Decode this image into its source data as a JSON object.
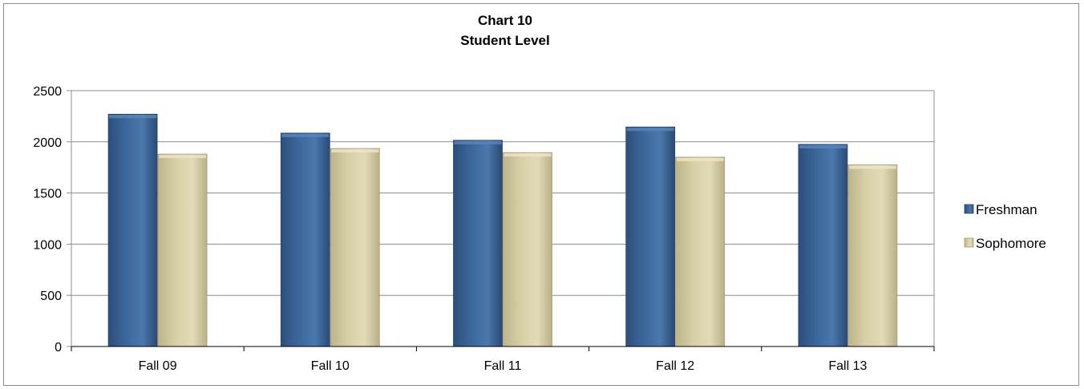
{
  "chart_data": {
    "type": "bar",
    "title": "Chart 10",
    "subtitle": "Student Level",
    "categories": [
      "Fall 09",
      "Fall 10",
      "Fall 11",
      "Fall 12",
      "Fall 13"
    ],
    "series": [
      {
        "name": "Freshman",
        "values": [
          2270,
          2085,
          2015,
          2145,
          1975
        ],
        "color": "#3c6699"
      },
      {
        "name": "Sophomore",
        "values": [
          1880,
          1935,
          1895,
          1850,
          1775
        ],
        "color": "#d7cfa5"
      }
    ],
    "ylim": [
      0,
      2500
    ],
    "yticks": [
      0,
      500,
      1000,
      1500,
      2000,
      2500
    ],
    "grid": true,
    "legend_position": "right"
  }
}
